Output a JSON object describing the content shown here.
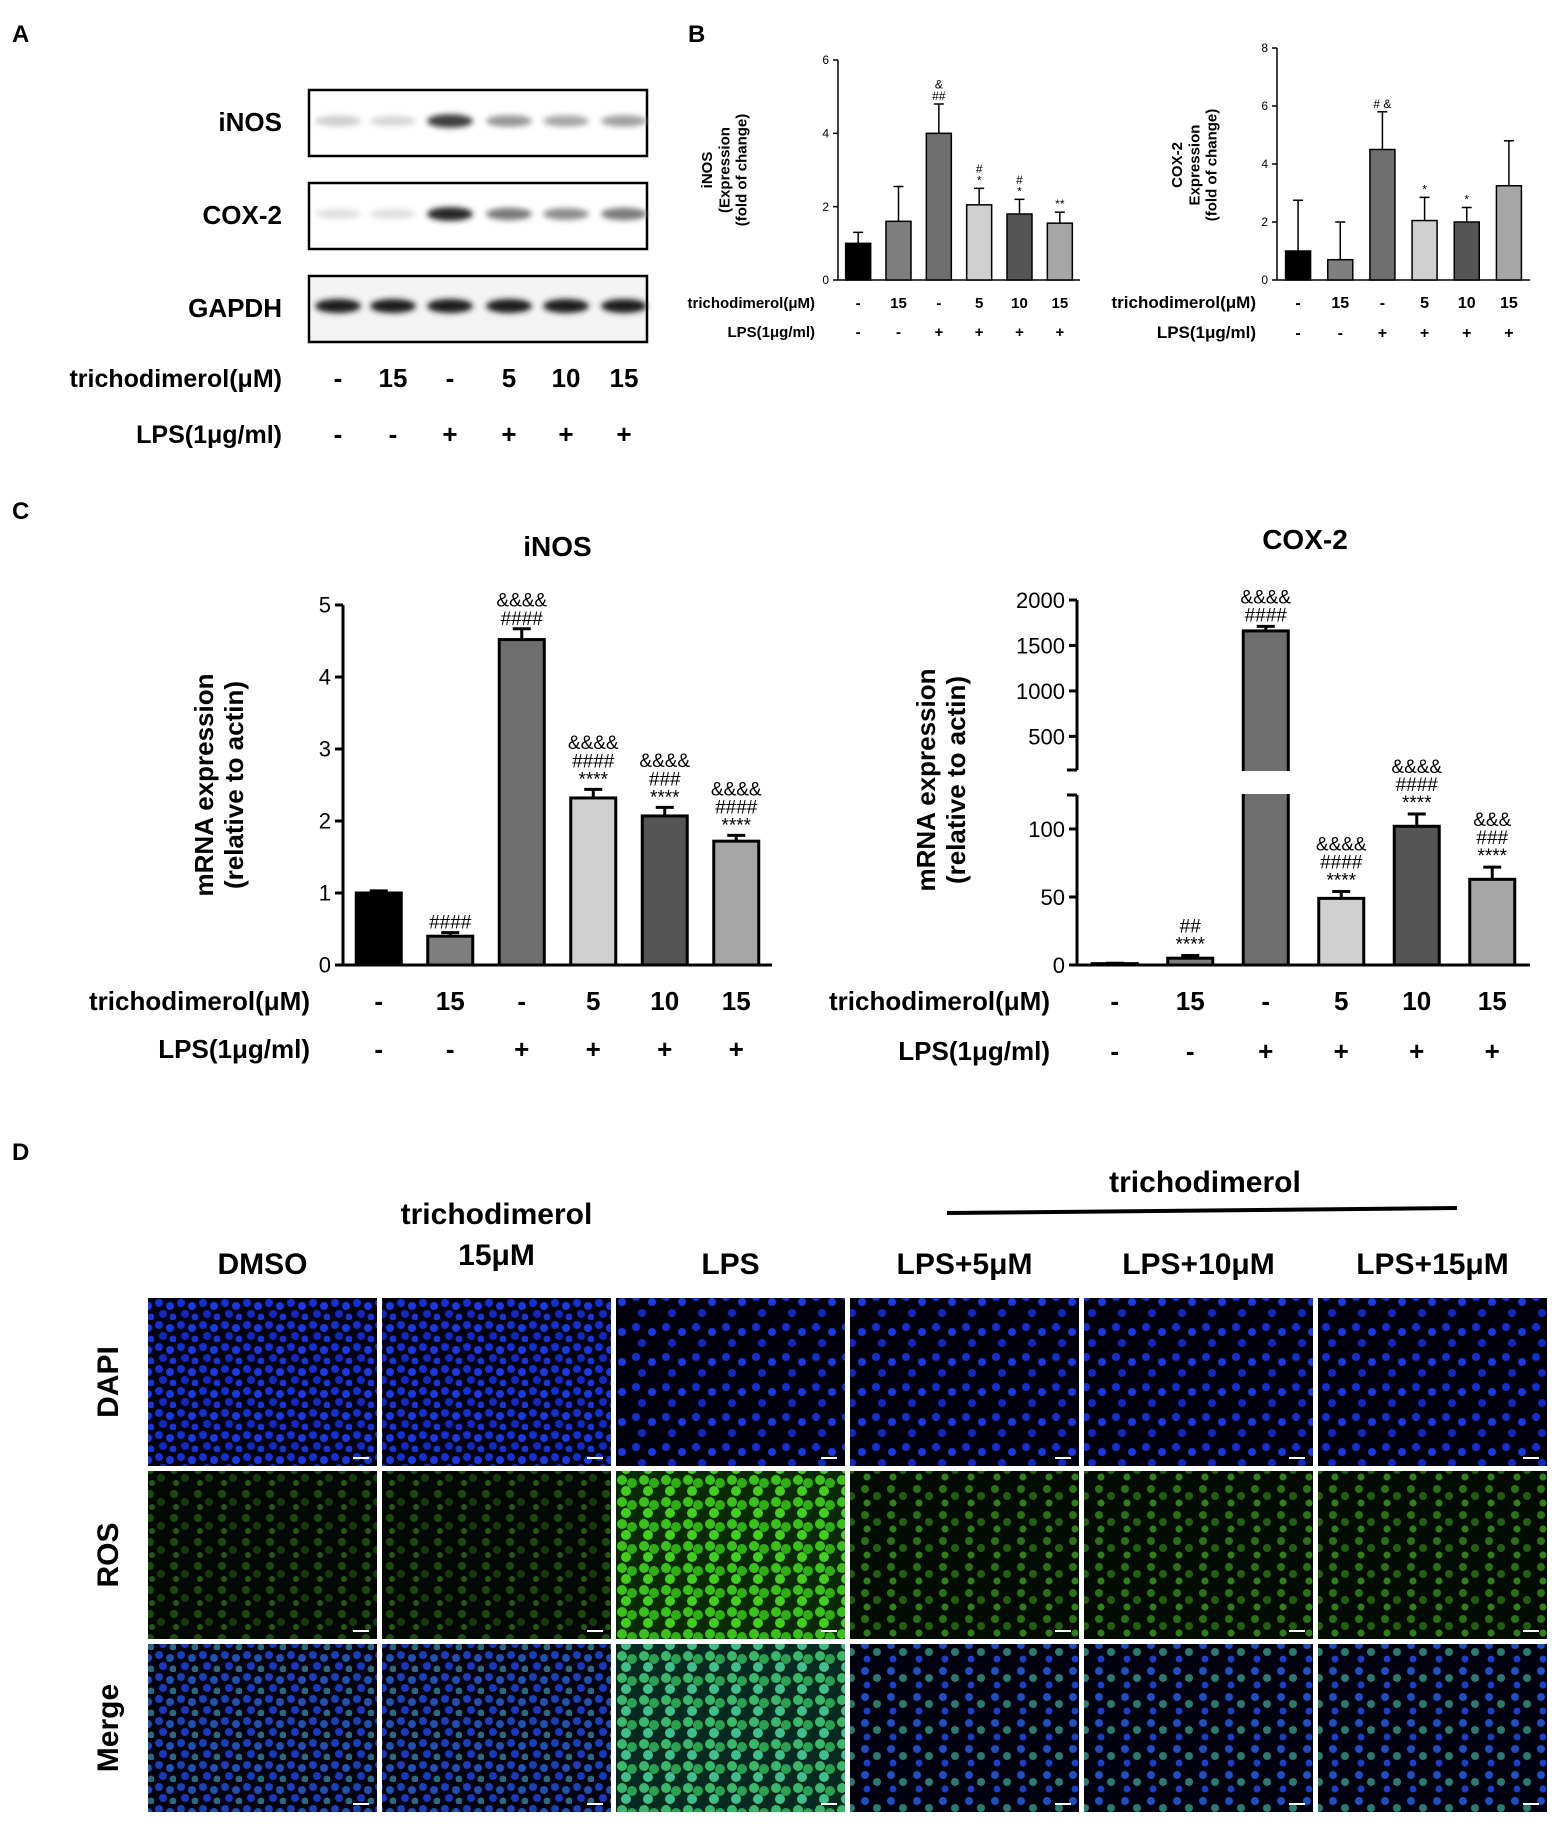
{
  "panels": {
    "A": {
      "letter": "A",
      "blots": [
        "iNOS",
        "COX-2",
        "GAPDH"
      ],
      "row_labels": [
        "trichodimerol(μM)",
        "LPS(1μg/ml)"
      ],
      "trichodimerol": [
        "-",
        "15",
        "-",
        "5",
        "10",
        "15"
      ],
      "lps": [
        "-",
        "-",
        "+",
        "+",
        "+",
        "+"
      ]
    },
    "B": {
      "letter": "B",
      "row_labels": [
        "trichodimerol(μM)",
        "LPS(1μg/ml)"
      ],
      "trichodimerol": [
        "-",
        "15",
        "-",
        "5",
        "10",
        "15"
      ],
      "lps": [
        "-",
        "-",
        "+",
        "+",
        "+",
        "+"
      ]
    },
    "C": {
      "letter": "C",
      "row_labels": [
        "trichodimerol(μM)",
        "LPS(1μg/ml)"
      ],
      "trichodimerol": [
        "-",
        "15",
        "-",
        "5",
        "10",
        "15"
      ],
      "lps": [
        "-",
        "-",
        "+",
        "+",
        "+",
        "+"
      ]
    },
    "D": {
      "letter": "D",
      "group_label": "trichodimerol",
      "columns": [
        "DMSO",
        "trichodimerol 15μM",
        "LPS",
        "LPS+5μM",
        "LPS+10μM",
        "LPS+15μM"
      ],
      "col_line1": [
        "",
        "trichodimerol",
        "",
        "",
        "",
        ""
      ],
      "col_line2": [
        "DMSO",
        "15μM",
        "LPS",
        "LPS+5μM",
        "LPS+10μM",
        "LPS+15μM"
      ],
      "rows": [
        "DAPI",
        "ROS",
        "Merge"
      ]
    }
  },
  "chart_data": [
    {
      "id": "B-iNOS",
      "type": "bar",
      "ylabel": "iNOS (Expression (fold of change)",
      "ylabel_lines": [
        "iNOS",
        "(Expression",
        "(fold of change)"
      ],
      "ylim": [
        0,
        6
      ],
      "yticks": [
        0,
        2,
        4,
        6
      ],
      "values": [
        1.0,
        1.6,
        4.0,
        2.05,
        1.8,
        1.55
      ],
      "errors": [
        0.3,
        0.95,
        0.8,
        0.45,
        0.4,
        0.3
      ],
      "annotations": [
        [],
        [],
        [
          "##",
          "&"
        ],
        [
          "*",
          "#"
        ],
        [
          "*",
          "#"
        ],
        [
          "**"
        ]
      ],
      "colors": [
        "#000000",
        "#7f7f7f",
        "#6e6e6e",
        "#d0d0d0",
        "#555555",
        "#a6a6a6"
      ]
    },
    {
      "id": "B-COX2",
      "type": "bar",
      "ylabel": "COX-2 Expression (fold of change)",
      "ylabel_lines": [
        "COX-2",
        "Expression",
        "(fold of change)"
      ],
      "ylim": [
        0,
        8
      ],
      "yticks": [
        0,
        2,
        4,
        6,
        8
      ],
      "values": [
        1.0,
        0.7,
        4.5,
        2.05,
        2.0,
        3.25
      ],
      "errors": [
        1.75,
        1.3,
        1.3,
        0.8,
        0.5,
        1.55
      ],
      "annotations": [
        [],
        [],
        [
          "# &"
        ],
        [
          "*"
        ],
        [
          "*"
        ],
        []
      ],
      "colors": [
        "#000000",
        "#7f7f7f",
        "#6e6e6e",
        "#d0d0d0",
        "#555555",
        "#a6a6a6"
      ]
    },
    {
      "id": "C-iNOS",
      "type": "bar",
      "title": "iNOS",
      "ylabel": "mRNA expression (relative to actin)",
      "ylabel_lines": [
        "mRNA expression",
        "(relative to actin)"
      ],
      "ylim": [
        0,
        5
      ],
      "yticks": [
        0,
        1,
        2,
        3,
        4,
        5
      ],
      "values": [
        1.0,
        0.4,
        4.52,
        2.32,
        2.07,
        1.72
      ],
      "errors": [
        0.03,
        0.05,
        0.15,
        0.12,
        0.12,
        0.08
      ],
      "annotations": [
        [],
        [
          "####"
        ],
        [
          "####",
          "&&&&"
        ],
        [
          "****",
          "####",
          "&&&&"
        ],
        [
          "****",
          "###",
          "&&&&"
        ],
        [
          "****",
          "####",
          "&&&&"
        ]
      ],
      "colors": [
        "#000000",
        "#7f7f7f",
        "#6e6e6e",
        "#d0d0d0",
        "#555555",
        "#a6a6a6"
      ]
    },
    {
      "id": "C-COX2",
      "type": "bar",
      "title": "COX-2",
      "ylabel": "mRNA expression (relative to actin)",
      "ylabel_lines": [
        "mRNA expression",
        "(relative to actin)"
      ],
      "axis_break": true,
      "yticks_lower": [
        0,
        50,
        100
      ],
      "yticks_upper": [
        500,
        1000,
        1500,
        2000
      ],
      "values": [
        1,
        5,
        1660,
        49,
        102,
        63
      ],
      "errors": [
        0.3,
        2,
        50,
        5,
        9,
        9
      ],
      "annotations": [
        [],
        [
          "****",
          "##"
        ],
        [
          "####",
          "&&&&"
        ],
        [
          "****",
          "####",
          "&&&&"
        ],
        [
          "****",
          "####",
          "&&&&"
        ],
        [
          "****",
          "###",
          "&&&"
        ]
      ],
      "colors": [
        "#000000",
        "#7f7f7f",
        "#6e6e6e",
        "#d0d0d0",
        "#555555",
        "#a6a6a6"
      ]
    }
  ]
}
